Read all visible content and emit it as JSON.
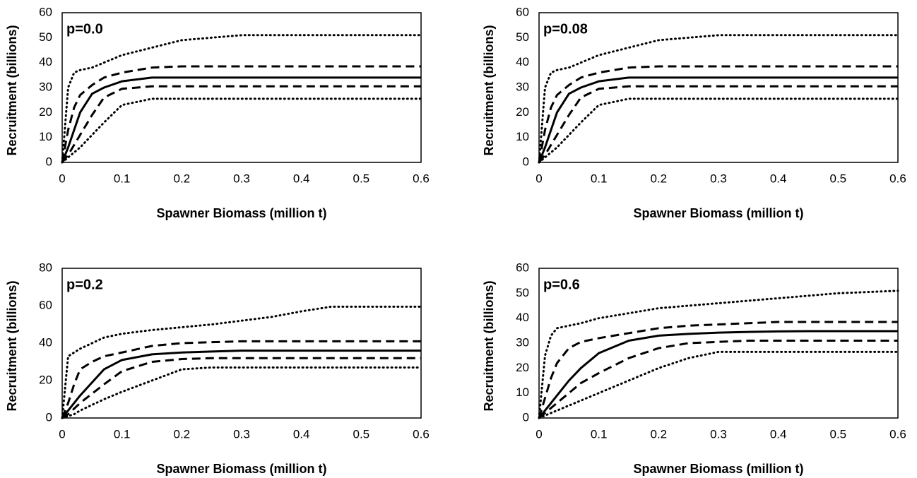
{
  "chart_data": [
    {
      "type": "line",
      "annotation": "p=0.0",
      "x_label": "Spawner Biomass (million t)",
      "y_label": "Recruitment (billions)",
      "xlim": [
        0,
        0.6
      ],
      "xticks": [
        0,
        0.1,
        0.2,
        0.3,
        0.4,
        0.5,
        0.6
      ],
      "ylim": [
        0,
        60
      ],
      "yticks": [
        0,
        10,
        20,
        30,
        40,
        50,
        60
      ],
      "x": [
        0,
        0.01,
        0.02,
        0.03,
        0.05,
        0.07,
        0.1,
        0.15,
        0.2,
        0.25,
        0.3,
        0.35,
        0.4,
        0.45,
        0.5,
        0.55,
        0.6
      ],
      "series": [
        {
          "color": "#000000",
          "dash": "dotted",
          "values": [
            0,
            30,
            36,
            37,
            38,
            40,
            43,
            46,
            49,
            50,
            51,
            51,
            51,
            51,
            51,
            51,
            51
          ]
        },
        {
          "color": "#000000",
          "dash": "dashed",
          "values": [
            0,
            13,
            22,
            27,
            31,
            34,
            36,
            38,
            38.5,
            38.5,
            38.5,
            38.5,
            38.5,
            38.5,
            38.5,
            38.5,
            38.5
          ]
        },
        {
          "color": "#000000",
          "dash": "solid",
          "values": [
            0,
            6,
            13,
            20,
            27.5,
            30,
            32.5,
            34,
            34,
            34,
            34,
            34,
            34,
            34,
            34,
            34,
            34
          ]
        },
        {
          "color": "#000000",
          "dash": "dashed",
          "values": [
            0,
            3,
            7,
            11,
            19,
            26,
            29.5,
            30.5,
            30.5,
            30.5,
            30.5,
            30.5,
            30.5,
            30.5,
            30.5,
            30.5,
            30.5
          ]
        },
        {
          "color": "#000000",
          "dash": "dotted",
          "values": [
            0,
            2,
            4,
            6,
            11,
            16,
            23,
            25.5,
            25.5,
            25.5,
            25.5,
            25.5,
            25.5,
            25.5,
            25.5,
            25.5,
            25.5
          ]
        }
      ]
    },
    {
      "type": "line",
      "annotation": "p=0.08",
      "x_label": "Spawner Biomass (million t)",
      "y_label": "Recruitment (billions)",
      "xlim": [
        0,
        0.6
      ],
      "xticks": [
        0,
        0.1,
        0.2,
        0.3,
        0.4,
        0.5,
        0.6
      ],
      "ylim": [
        0,
        60
      ],
      "yticks": [
        0,
        10,
        20,
        30,
        40,
        50,
        60
      ],
      "x": [
        0,
        0.01,
        0.02,
        0.03,
        0.05,
        0.07,
        0.1,
        0.15,
        0.2,
        0.25,
        0.3,
        0.35,
        0.4,
        0.45,
        0.5,
        0.55,
        0.6
      ],
      "series": [
        {
          "color": "#000000",
          "dash": "dotted",
          "values": [
            0,
            30,
            36,
            37,
            38,
            40,
            43,
            46,
            49,
            50,
            51,
            51,
            51,
            51,
            51,
            51,
            51
          ]
        },
        {
          "color": "#000000",
          "dash": "dashed",
          "values": [
            0,
            13,
            22,
            27,
            31,
            34,
            36,
            38,
            38.5,
            38.5,
            38.5,
            38.5,
            38.5,
            38.5,
            38.5,
            38.5,
            38.5
          ]
        },
        {
          "color": "#000000",
          "dash": "solid",
          "values": [
            0,
            6,
            13,
            20,
            27.5,
            30,
            32.5,
            34,
            34,
            34,
            34,
            34,
            34,
            34,
            34,
            34,
            34
          ]
        },
        {
          "color": "#000000",
          "dash": "dashed",
          "values": [
            0,
            3,
            7,
            11,
            19,
            26,
            29.5,
            30.5,
            30.5,
            30.5,
            30.5,
            30.5,
            30.5,
            30.5,
            30.5,
            30.5,
            30.5
          ]
        },
        {
          "color": "#000000",
          "dash": "dotted",
          "values": [
            0,
            2,
            4,
            6,
            11,
            16,
            23,
            25.5,
            25.5,
            25.5,
            25.5,
            25.5,
            25.5,
            25.5,
            25.5,
            25.5,
            25.5
          ]
        }
      ]
    },
    {
      "type": "line",
      "annotation": "p=0.2",
      "x_label": "Spawner Biomass (million t)",
      "y_label": "Recruitment (billions)",
      "xlim": [
        0,
        0.6
      ],
      "xticks": [
        0,
        0.1,
        0.2,
        0.3,
        0.4,
        0.5,
        0.6
      ],
      "ylim": [
        0,
        80
      ],
      "yticks": [
        0,
        20,
        40,
        60,
        80
      ],
      "x": [
        0,
        0.01,
        0.02,
        0.03,
        0.05,
        0.07,
        0.1,
        0.15,
        0.2,
        0.25,
        0.3,
        0.35,
        0.4,
        0.45,
        0.5,
        0.55,
        0.6
      ],
      "series": [
        {
          "color": "#000000",
          "dash": "dotted",
          "values": [
            0,
            33,
            35,
            37,
            40,
            43,
            45,
            47,
            48.5,
            50,
            52,
            54,
            57,
            59.5,
            59.5,
            59.5,
            59.5
          ]
        },
        {
          "color": "#000000",
          "dash": "dashed",
          "values": [
            0,
            8,
            18,
            26,
            30,
            33,
            35,
            38.5,
            40,
            40.5,
            41,
            41,
            41,
            41,
            41,
            41,
            41
          ]
        },
        {
          "color": "#000000",
          "dash": "solid",
          "values": [
            0,
            4,
            8,
            12,
            19,
            26,
            31,
            34,
            35,
            35.5,
            36,
            36,
            36,
            36,
            36,
            36,
            36
          ]
        },
        {
          "color": "#000000",
          "dash": "dashed",
          "values": [
            0,
            2,
            5,
            8,
            13,
            18,
            25,
            30,
            31.5,
            32,
            32,
            32,
            32,
            32,
            32,
            32,
            32
          ]
        },
        {
          "color": "#000000",
          "dash": "dotted",
          "values": [
            0,
            1,
            2,
            4,
            7,
            10,
            14,
            20,
            26,
            27,
            27,
            27,
            27,
            27,
            27,
            27,
            27
          ]
        }
      ]
    },
    {
      "type": "line",
      "annotation": "p=0.6",
      "x_label": "Spawner Biomass (million t)",
      "y_label": "Recruitment (billions)",
      "xlim": [
        0,
        0.6
      ],
      "xticks": [
        0,
        0.1,
        0.2,
        0.3,
        0.4,
        0.5,
        0.6
      ],
      "ylim": [
        0,
        60
      ],
      "yticks": [
        0,
        10,
        20,
        30,
        40,
        50,
        60
      ],
      "x": [
        0,
        0.01,
        0.02,
        0.03,
        0.05,
        0.07,
        0.1,
        0.15,
        0.2,
        0.25,
        0.3,
        0.35,
        0.4,
        0.45,
        0.5,
        0.55,
        0.6
      ],
      "series": [
        {
          "color": "#000000",
          "dash": "dotted",
          "values": [
            0,
            25,
            33,
            36,
            37,
            38,
            40,
            42,
            44,
            45,
            46,
            47,
            48,
            49,
            50,
            50.5,
            51
          ]
        },
        {
          "color": "#000000",
          "dash": "dashed",
          "values": [
            0,
            8,
            16,
            22,
            28,
            30.5,
            32,
            34,
            36,
            37,
            37.5,
            38,
            38.5,
            38.5,
            38.5,
            38.5,
            38.5
          ]
        },
        {
          "color": "#000000",
          "dash": "solid",
          "values": [
            0,
            3,
            6,
            9,
            15,
            20,
            26,
            31,
            33,
            33.7,
            34.2,
            34.5,
            34.7,
            34.8,
            34.8,
            34.8,
            34.8
          ]
        },
        {
          "color": "#000000",
          "dash": "dashed",
          "values": [
            0,
            2,
            4,
            6,
            10,
            14,
            18,
            24,
            28,
            30,
            30.5,
            31,
            31,
            31,
            31,
            31,
            31
          ]
        },
        {
          "color": "#000000",
          "dash": "dotted",
          "values": [
            0,
            1,
            2,
            3,
            5,
            7,
            10,
            15,
            20,
            24,
            26.5,
            26.5,
            26.5,
            26.5,
            26.5,
            26.5,
            26.5
          ]
        }
      ]
    }
  ]
}
